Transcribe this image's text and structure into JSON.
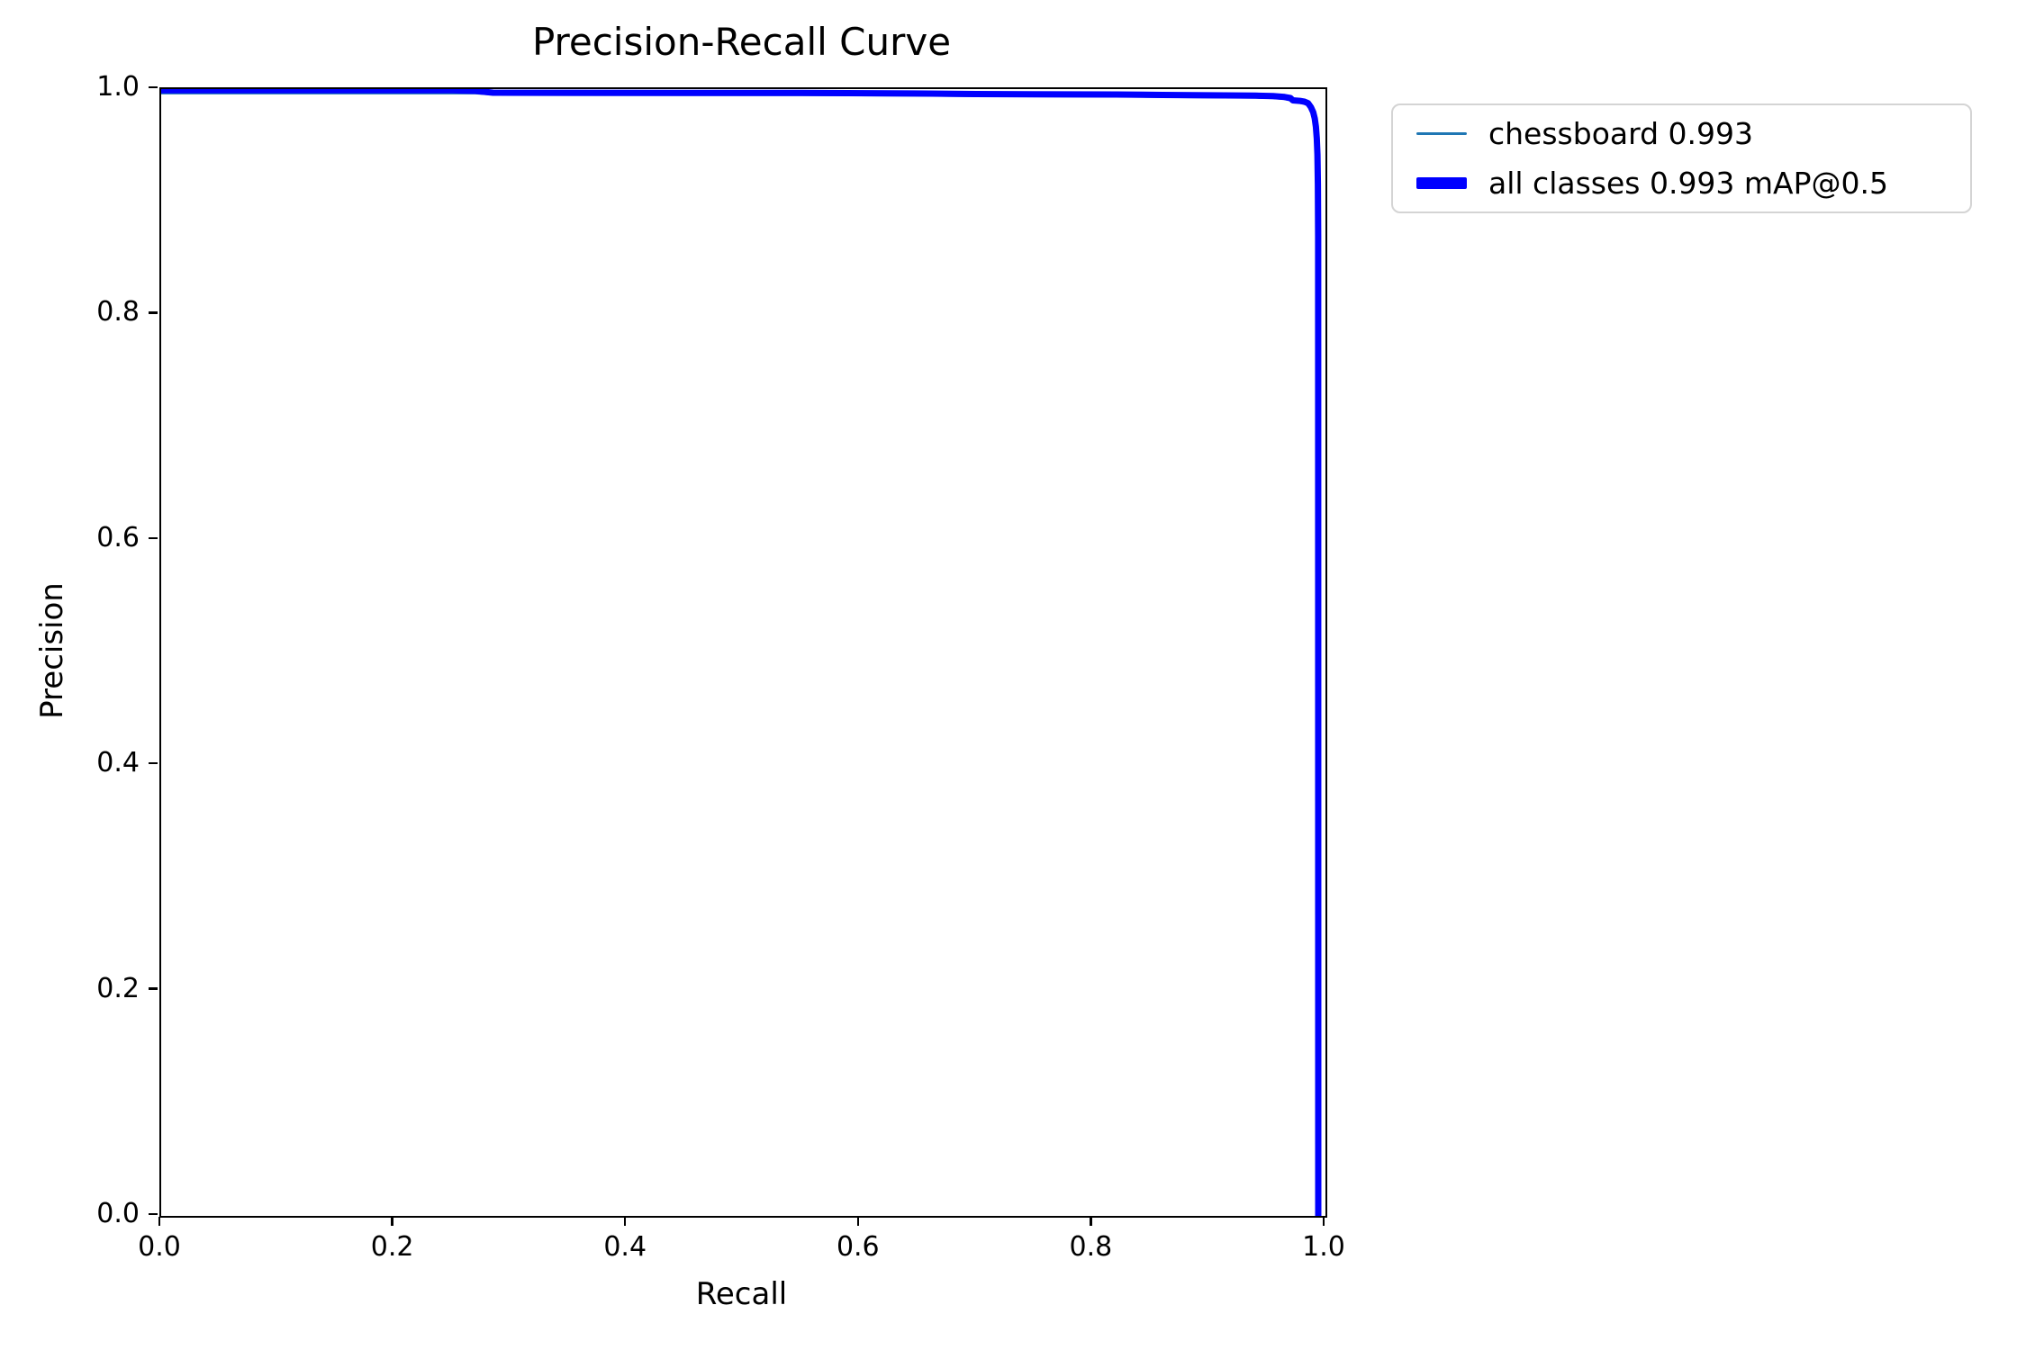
{
  "figure": {
    "background": "#ffffff",
    "axes_box_color": "#000000",
    "legend_border_color": "#d4d4d4"
  },
  "chart_data": {
    "type": "line",
    "title": "Precision-Recall Curve",
    "xlabel": "Recall",
    "ylabel": "Precision",
    "xlim": [
      0.0,
      1.0
    ],
    "ylim": [
      0.0,
      1.0
    ],
    "grid": false,
    "legend_position": "outside-upper-right",
    "x_tick_labels": [
      "0.0",
      "0.2",
      "0.4",
      "0.6",
      "0.8",
      "1.0"
    ],
    "y_tick_labels": [
      "0.0",
      "0.2",
      "0.4",
      "0.6",
      "0.8",
      "1.0"
    ],
    "series": [
      {
        "name": "chessboard",
        "legend_label": "chessboard 0.993",
        "ap_at_05": 0.993,
        "color": "#1f77b4",
        "style": "thin",
        "points": [
          [
            0.0,
            0.9963
          ],
          [
            0.27,
            0.9963
          ],
          [
            0.29,
            0.995
          ],
          [
            0.55,
            0.9948
          ],
          [
            0.66,
            0.9943
          ],
          [
            0.7,
            0.9939
          ],
          [
            0.82,
            0.9935
          ],
          [
            0.86,
            0.9931
          ],
          [
            0.9,
            0.9928
          ],
          [
            0.94,
            0.9925
          ],
          [
            0.955,
            0.9921
          ],
          [
            0.965,
            0.9913
          ],
          [
            0.97,
            0.99
          ],
          [
            0.978,
            0.9878
          ],
          [
            0.982,
            0.9871
          ],
          [
            0.985,
            0.9858
          ],
          [
            0.9875,
            0.9823
          ],
          [
            0.9895,
            0.9778
          ],
          [
            0.9908,
            0.9723
          ],
          [
            0.9918,
            0.9648
          ],
          [
            0.9924,
            0.9543
          ],
          [
            0.9927,
            0.9403
          ],
          [
            0.9929,
            0.91
          ],
          [
            0.993,
            0.0
          ]
        ]
      },
      {
        "name": "all classes",
        "legend_label": "all classes 0.993 mAP@0.5",
        "map_at_05": 0.993,
        "color": "#0000ff",
        "style": "thick",
        "points": [
          [
            0.0,
            0.999
          ],
          [
            0.25,
            0.999
          ],
          [
            0.27,
            0.9984
          ],
          [
            0.285,
            0.9968
          ],
          [
            0.55,
            0.9966
          ],
          [
            0.66,
            0.996
          ],
          [
            0.7,
            0.9956
          ],
          [
            0.82,
            0.9952
          ],
          [
            0.86,
            0.9948
          ],
          [
            0.9,
            0.9945
          ],
          [
            0.94,
            0.9942
          ],
          [
            0.955,
            0.9938
          ],
          [
            0.965,
            0.993
          ],
          [
            0.97,
            0.992
          ],
          [
            0.972,
            0.99
          ],
          [
            0.978,
            0.9895
          ],
          [
            0.982,
            0.9888
          ],
          [
            0.985,
            0.9875
          ],
          [
            0.9875,
            0.984
          ],
          [
            0.9895,
            0.9795
          ],
          [
            0.9908,
            0.974
          ],
          [
            0.9918,
            0.9665
          ],
          [
            0.9926,
            0.956
          ],
          [
            0.9931,
            0.942
          ],
          [
            0.9935,
            0.915
          ],
          [
            0.9937,
            0.87
          ],
          [
            0.9938,
            0.0
          ]
        ]
      }
    ]
  }
}
